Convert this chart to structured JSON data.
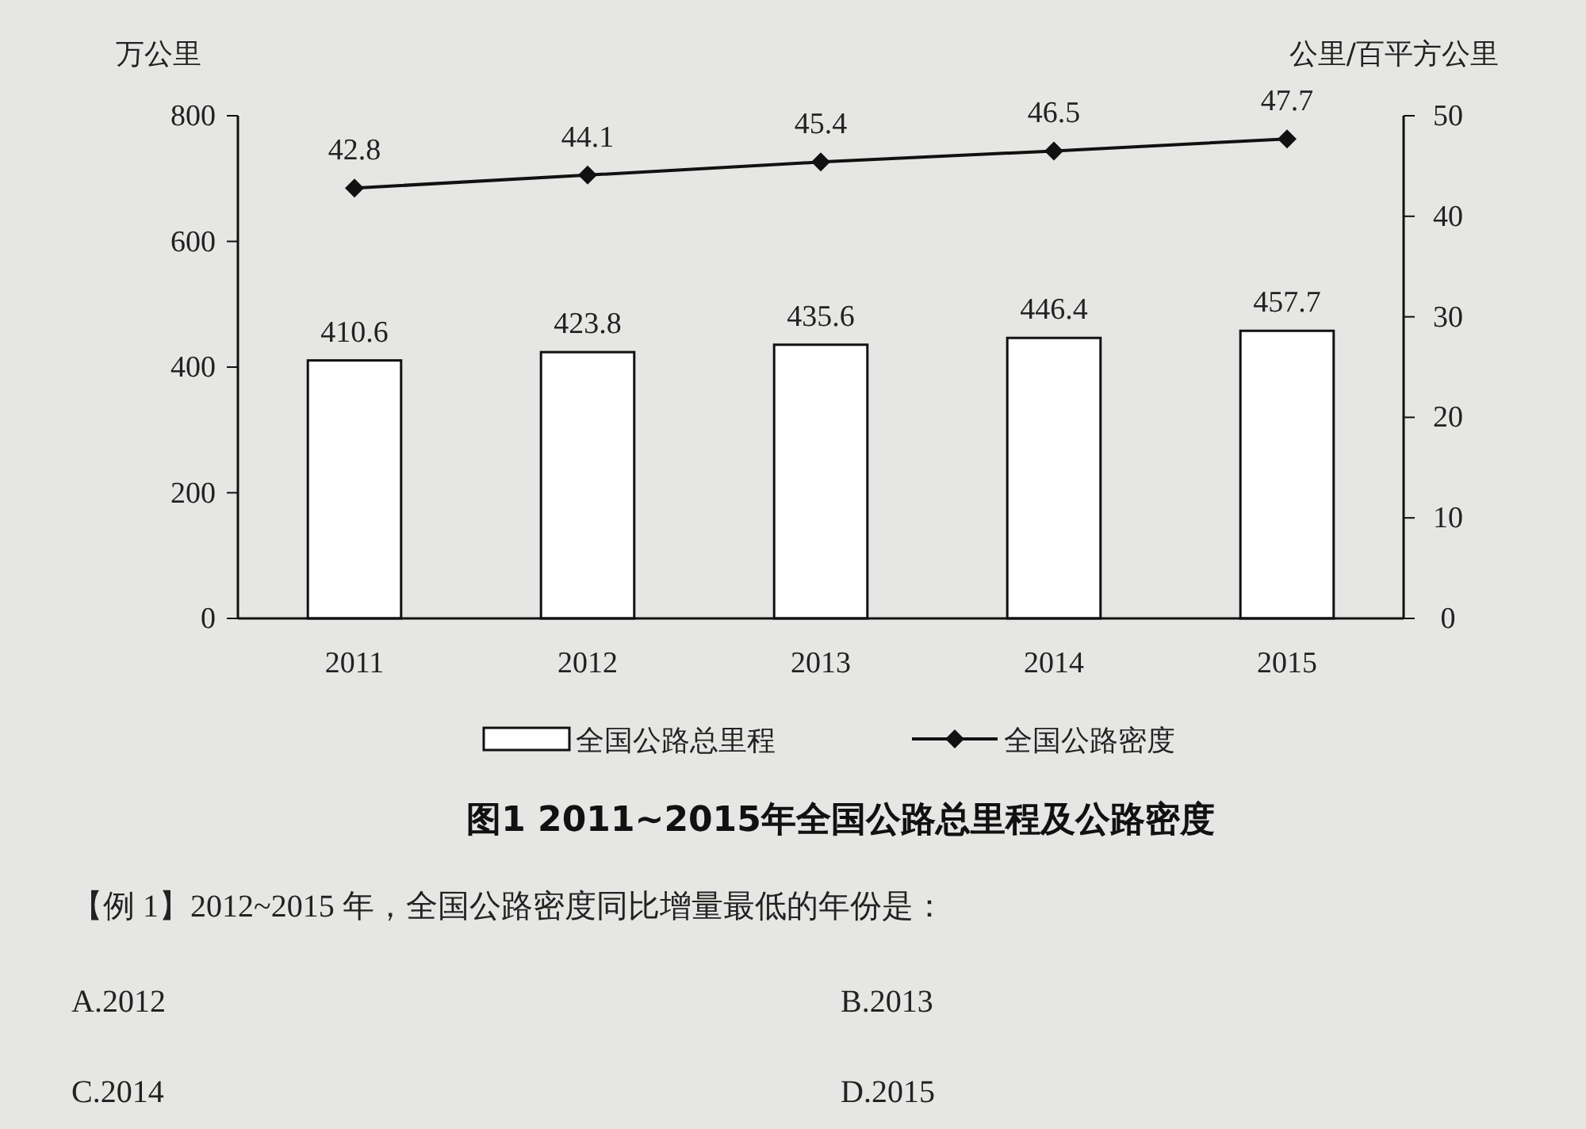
{
  "chart_data": {
    "type": "bar",
    "title": "图1 2011~2015年全国公路总里程及公路密度",
    "ylabel": "万公里",
    "y2label": "公里/百平方公里",
    "categories": [
      "2011",
      "2012",
      "2013",
      "2014",
      "2015"
    ],
    "series": [
      {
        "name": "全国公路总里程",
        "color": "#ffffff",
        "values": [
          410.6,
          423.8,
          435.6,
          446.4,
          457.7
        ]
      },
      {
        "name": "全国公路密度",
        "type": "line",
        "axis": "y2",
        "color": "#111111",
        "marker": "diamond",
        "values": [
          42.8,
          44.1,
          45.4,
          46.5,
          47.7
        ]
      }
    ],
    "ylim": [
      0,
      800
    ],
    "yticks": [
      0,
      200,
      400,
      600,
      800
    ],
    "y2lim": [
      0,
      50
    ],
    "y2ticks": [
      0,
      10,
      20,
      30,
      40,
      50
    ],
    "data_labels": true,
    "legend": "bottom",
    "grid": false,
    "annotations": [
      "【例 1】2012~2015 年，全国公路密度同比增量最低的年份是：",
      "A.2012",
      "B.2013",
      "C.2014",
      "D.2015"
    ]
  }
}
